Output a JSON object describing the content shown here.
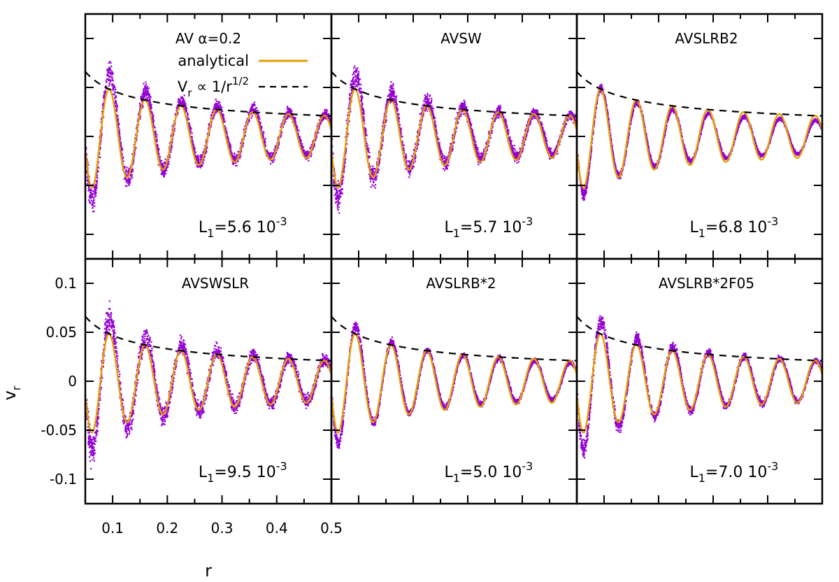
{
  "chart_data": {
    "type": "scatter",
    "layout": "2x3 panel grid",
    "xlabel": "r",
    "ylabel": "v",
    "ylabel_subscript": "r",
    "xlim": [
      0.05,
      0.5
    ],
    "ylim": [
      -0.125,
      0.125
    ],
    "xticks": [
      0.1,
      0.2,
      0.3,
      0.4,
      0.5
    ],
    "xtick_labels": [
      "0.1",
      "0.2",
      "0.3",
      "0.4",
      "0.5"
    ],
    "yticks": [
      -0.1,
      -0.05,
      0,
      0.05,
      0.1
    ],
    "ytick_labels": [
      "-0.1",
      "-0.05",
      "0",
      "0.05",
      "0.1"
    ],
    "colors": {
      "simulation": "#9400d3",
      "analytical": "#e69f00",
      "envelope": "#000000"
    },
    "legend": {
      "analytical": "analytical",
      "envelope_main": "V",
      "envelope_sub": "r",
      "envelope_mid": " ∝ 1/r",
      "envelope_sup": "1/2"
    },
    "envelope": {
      "formula": "0.0148/sqrt(r)",
      "x_range": [
        0.05,
        0.5
      ]
    },
    "analytical_model": {
      "amplitude_at_0_1": 0.047,
      "wavelength": 0.0655,
      "first_peak_r": 0.094
    },
    "panels": [
      {
        "title": "AV α=0.2",
        "l1_main": "L",
        "l1_sub": "1",
        "l1_value": "=5.6 10",
        "l1_exp": "-3",
        "sim_amp": 0.057,
        "sim_spread": 0.022,
        "sim_mean": 0.006
      },
      {
        "title": "AVSW",
        "l1_main": "L",
        "l1_sub": "1",
        "l1_value": "=5.7 10",
        "l1_exp": "-3",
        "sim_amp": 0.055,
        "sim_spread": 0.024,
        "sim_mean": 0.006
      },
      {
        "title": "AVSLRB2",
        "l1_main": "L",
        "l1_sub": "1",
        "l1_value": "=6.8 10",
        "l1_exp": "-3",
        "sim_amp": 0.047,
        "sim_spread": 0.008,
        "sim_mean": 0.001
      },
      {
        "title": "AVSWSLR",
        "l1_main": "L",
        "l1_sub": "1",
        "l1_value": "=9.5 10",
        "l1_exp": "-3",
        "sim_amp": 0.058,
        "sim_spread": 0.026,
        "sim_mean": 0.004
      },
      {
        "title": "AVSLRB*2",
        "l1_main": "L",
        "l1_sub": "1",
        "l1_value": "=5.0 10",
        "l1_exp": "-3",
        "sim_amp": 0.052,
        "sim_spread": 0.01,
        "sim_mean": 0.003
      },
      {
        "title": "AVSLRB*2F05",
        "l1_main": "L",
        "l1_sub": "1",
        "l1_value": "=7.0 10",
        "l1_exp": "-3",
        "sim_amp": 0.057,
        "sim_spread": 0.014,
        "sim_mean": 0.003
      }
    ]
  }
}
